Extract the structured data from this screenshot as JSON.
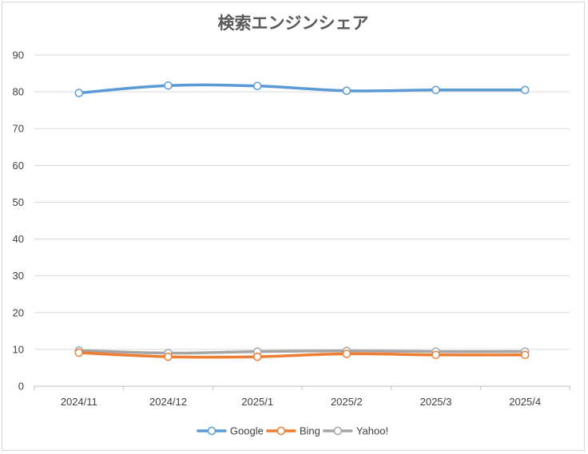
{
  "chart_data": {
    "type": "line",
    "title": "検索エンジンシェア",
    "xlabel": "",
    "ylabel": "",
    "categories": [
      "2024/11",
      "2024/12",
      "2025/1",
      "2025/2",
      "2025/3",
      "2025/4"
    ],
    "ylim": [
      0,
      90
    ],
    "yticks": [
      0,
      10,
      20,
      30,
      40,
      50,
      60,
      70,
      80,
      90
    ],
    "grid": true,
    "legend": "bottom",
    "series": [
      {
        "name": "Google",
        "color": "#5b9bd5",
        "values": [
          79.7,
          81.7,
          81.6,
          80.3,
          80.5,
          80.5
        ]
      },
      {
        "name": "Bing",
        "color": "#ed7d31",
        "values": [
          9.1,
          8.0,
          8.0,
          8.8,
          8.5,
          8.5
        ]
      },
      {
        "name": "Yahoo!",
        "color": "#a5a5a5",
        "values": [
          9.7,
          9.0,
          9.4,
          9.6,
          9.4,
          9.4
        ]
      }
    ]
  }
}
